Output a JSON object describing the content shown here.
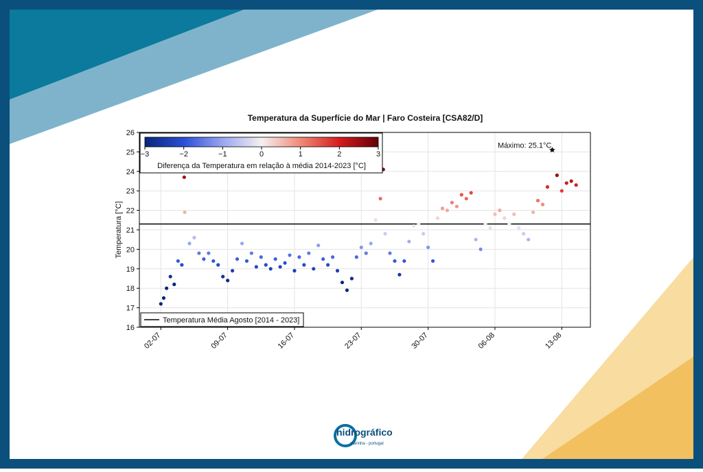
{
  "chart_data": {
    "type": "scatter",
    "title": "Temperatura da Superfície do Mar | Faro Costeira [CSA82/D]",
    "y_label": "Temperatura [°C]",
    "xlim": [
      -0.25,
      47
    ],
    "xticks": [
      {
        "value": 2,
        "label": "02-07"
      },
      {
        "value": 9,
        "label": "09-07"
      },
      {
        "value": 16,
        "label": "16-07"
      },
      {
        "value": 23,
        "label": "23-07"
      },
      {
        "value": 30,
        "label": "30-07"
      },
      {
        "value": 37,
        "label": "06-08"
      },
      {
        "value": 44,
        "label": "13-08"
      }
    ],
    "ylim": [
      16,
      26
    ],
    "yticks": [
      16,
      17,
      18,
      19,
      20,
      21,
      22,
      23,
      24,
      25,
      26
    ],
    "grid": true,
    "x": [
      2,
      2.3,
      2.6,
      3,
      3.4,
      3.8,
      4.2,
      4.45,
      4.5,
      5,
      5.5,
      6,
      6.5,
      7,
      7.5,
      8,
      8.5,
      9,
      9.5,
      10,
      10.5,
      11,
      11.5,
      12,
      12.5,
      13,
      13.5,
      14,
      14.5,
      15,
      15.5,
      16,
      16.5,
      17,
      17.5,
      18,
      18.5,
      19,
      19.5,
      20,
      20.5,
      21,
      21.5,
      22,
      22.5,
      23,
      23.5,
      24,
      24.5,
      25,
      25.3,
      25.5,
      26,
      26.5,
      27,
      27.5,
      28,
      28.5,
      29,
      29.5,
      30,
      30.5,
      31,
      31.5,
      32,
      32.5,
      33,
      33.5,
      34,
      34.5,
      35,
      35.5,
      36,
      36.5,
      37,
      37.5,
      38,
      38.5,
      39,
      39.5,
      40,
      40.5,
      41,
      41.5,
      42,
      42.5,
      43,
      43.5,
      44,
      44.5,
      45,
      45.5
    ],
    "values": [
      17.2,
      17.5,
      18,
      18.6,
      18.2,
      19.4,
      19.2,
      23.7,
      21.9,
      20.3,
      20.6,
      19.8,
      19.5,
      19.8,
      19.4,
      19.2,
      18.6,
      18.4,
      18.9,
      19.5,
      20.3,
      19.4,
      19.8,
      19.1,
      19.6,
      19.2,
      19,
      19.5,
      19.1,
      19.3,
      19.7,
      18.9,
      19.6,
      19.2,
      19.8,
      19,
      20.2,
      19.5,
      19.2,
      19.6,
      18.9,
      18.3,
      17.9,
      18.5,
      19.6,
      20.1,
      19.8,
      20.3,
      21.5,
      22.6,
      24.1,
      20.8,
      19.8,
      19.4,
      18.7,
      19.4,
      20.4,
      21.2,
      21.3,
      20.8,
      20.1,
      19.4,
      21.6,
      22.1,
      22,
      22.4,
      22.2,
      22.8,
      22.6,
      22.9,
      20.5,
      20,
      21.3,
      21.1,
      21.8,
      22,
      21.6,
      21.3,
      21.8,
      21.1,
      20.8,
      20.5,
      21.9,
      22.5,
      22.3,
      23.2,
      25.1,
      23.8,
      23,
      23.4,
      23.5,
      23.3
    ],
    "reference_line": {
      "value": 21.3,
      "label": "Temperatura Média Agosto [2014 - 2023]",
      "color": "#000000"
    },
    "annotation": {
      "text": "Máximo: 25.1°C",
      "x": 43,
      "y": 25.1
    },
    "colormap": {
      "label": "Diferença da Temperatura em relação à média 2014-2023 [°C]",
      "lim": [
        -3,
        3
      ],
      "ticks": [
        {
          "value": -3,
          "label": "−3"
        },
        {
          "value": -2,
          "label": "−2"
        },
        {
          "value": -1,
          "label": "−1"
        },
        0,
        1,
        2,
        3
      ],
      "colors": [
        "#08267a",
        "#2a4fd6",
        "#9aa6f0",
        "#f4f0f0",
        "#f08a78",
        "#d41e1e",
        "#650008"
      ]
    }
  },
  "logo": {
    "name": "hidrográfico",
    "tagline": "marinha - portugal"
  }
}
